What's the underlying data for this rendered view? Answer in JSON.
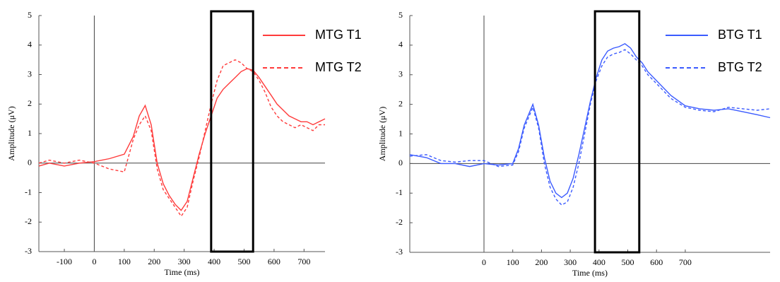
{
  "chart_data": [
    {
      "type": "line",
      "xlabel": "Time (ms)",
      "ylabel": "Amplitude (μV)",
      "xlim": [
        -185,
        770
      ],
      "ylim": [
        -3,
        5
      ],
      "xticks": [
        -100,
        0,
        100,
        200,
        300,
        400,
        500,
        600,
        700
      ],
      "yticks": [
        -3,
        -2,
        -1,
        0,
        1,
        2,
        3,
        4,
        5
      ],
      "highlight": [
        390,
        530
      ],
      "legend": "upper right",
      "x": [
        -185,
        -150,
        -100,
        -50,
        0,
        50,
        100,
        130,
        150,
        170,
        190,
        210,
        230,
        250,
        270,
        290,
        310,
        330,
        350,
        370,
        390,
        410,
        430,
        450,
        470,
        490,
        510,
        530,
        550,
        570,
        590,
        610,
        630,
        650,
        670,
        690,
        710,
        730,
        750,
        770
      ],
      "series": [
        {
          "name": "MTG T1",
          "color": "#ff3b3b",
          "dash": false,
          "values": [
            -0.1,
            0,
            -0.1,
            0,
            0.05,
            0.15,
            0.3,
            0.9,
            1.6,
            1.95,
            1.3,
            0,
            -0.7,
            -1.1,
            -1.4,
            -1.6,
            -1.3,
            -0.5,
            0.3,
            1.0,
            1.6,
            2.2,
            2.5,
            2.7,
            2.9,
            3.1,
            3.2,
            3.15,
            2.9,
            2.6,
            2.3,
            2.0,
            1.8,
            1.6,
            1.5,
            1.4,
            1.4,
            1.3,
            1.4,
            1.5
          ]
        },
        {
          "name": "MTG T2",
          "color": "#ff3b3b",
          "dash": true,
          "values": [
            0,
            0.1,
            0,
            0.1,
            0,
            -0.2,
            -0.3,
            0.8,
            1.3,
            1.6,
            1.1,
            -0.2,
            -0.9,
            -1.2,
            -1.5,
            -1.8,
            -1.5,
            -0.6,
            0.2,
            1.1,
            2.0,
            2.8,
            3.3,
            3.4,
            3.5,
            3.4,
            3.2,
            3.1,
            2.8,
            2.4,
            1.9,
            1.6,
            1.4,
            1.3,
            1.2,
            1.3,
            1.2,
            1.1,
            1.3,
            1.3
          ]
        }
      ]
    },
    {
      "type": "line",
      "xlabel": "Time (ms)",
      "ylabel": "Amplitude (μV)",
      "xlim": [
        -258,
        995
      ],
      "ylim": [
        -3,
        5
      ],
      "xticks": [
        0,
        100,
        200,
        300,
        400,
        500,
        600,
        700
      ],
      "yticks": [
        -3,
        -2,
        -1,
        0,
        1,
        2,
        3,
        4,
        5
      ],
      "highlight": [
        386,
        540
      ],
      "legend": "upper right",
      "x": [
        -258,
        -200,
        -150,
        -100,
        -50,
        0,
        50,
        100,
        120,
        140,
        170,
        190,
        210,
        230,
        250,
        270,
        290,
        310,
        330,
        350,
        370,
        390,
        410,
        430,
        450,
        470,
        490,
        510,
        530,
        550,
        570,
        600,
        650,
        700,
        750,
        800,
        850,
        900,
        950,
        995
      ],
      "series": [
        {
          "name": "BTG T1",
          "color": "#3b5bff",
          "dash": false,
          "values": [
            0.3,
            0.2,
            0,
            0,
            -0.1,
            0,
            -0.05,
            0,
            0.5,
            1.3,
            2.0,
            1.3,
            0.2,
            -0.6,
            -1.0,
            -1.15,
            -1.0,
            -0.5,
            0.3,
            1.2,
            2.1,
            2.9,
            3.5,
            3.8,
            3.9,
            3.95,
            4.05,
            3.9,
            3.6,
            3.4,
            3.1,
            2.8,
            2.3,
            1.95,
            1.85,
            1.8,
            1.85,
            1.75,
            1.65,
            1.55
          ]
        },
        {
          "name": "BTG T2",
          "color": "#3b5bff",
          "dash": true,
          "values": [
            0.25,
            0.3,
            0.1,
            0.05,
            0.1,
            0.1,
            -0.1,
            -0.05,
            0.4,
            1.2,
            1.9,
            1.2,
            0,
            -0.8,
            -1.2,
            -1.4,
            -1.3,
            -0.8,
            0,
            1.0,
            2.0,
            2.8,
            3.3,
            3.6,
            3.7,
            3.75,
            3.85,
            3.7,
            3.5,
            3.3,
            3.0,
            2.7,
            2.2,
            1.9,
            1.8,
            1.75,
            1.9,
            1.85,
            1.8,
            1.85
          ]
        }
      ]
    }
  ]
}
